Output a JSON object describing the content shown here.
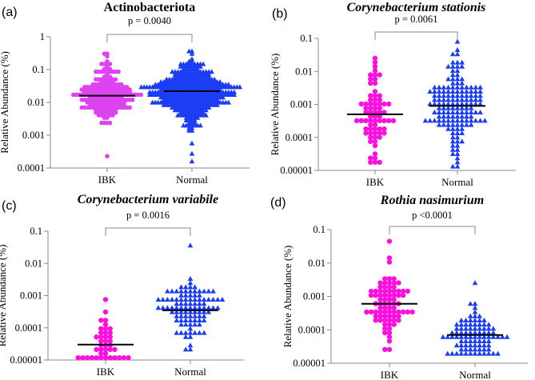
{
  "chart_data": [
    {
      "type": "scatter",
      "panel": "(a)",
      "title": "Actinobacteriota",
      "italic": false,
      "ylabel": "Relative Abundance (%)",
      "yscale": "log",
      "ylim": [
        0.0001,
        1
      ],
      "yticks": [
        "0.0001",
        "0.001",
        "0.01",
        "0.1",
        "1"
      ],
      "categories": [
        "IBK",
        "Normal"
      ],
      "pvalue": "p = 0.0040",
      "groups": [
        {
          "name": "IBK",
          "marker": "circle",
          "color": "#dd44f0",
          "median": 0.016,
          "min": 0.00025,
          "max": 0.3,
          "n": 230,
          "spread": 0.42
        },
        {
          "name": "Normal",
          "marker": "triangle",
          "color": "#1a3cf5",
          "median": 0.022,
          "min": 0.00016,
          "max": 0.35,
          "n": 420,
          "spread": 0.45
        }
      ]
    },
    {
      "type": "scatter",
      "panel": "(b)",
      "title": "Corynebacterium stationis",
      "italic": true,
      "ylabel": "Relative Abundance (%)",
      "yscale": "log",
      "ylim": [
        1e-05,
        0.1
      ],
      "yticks": [
        "0.00001",
        "0.0001",
        "0.001",
        "0.01",
        "0.1"
      ],
      "categories": [
        "IBK",
        "Normal"
      ],
      "pvalue": "p = 0.0061",
      "groups": [
        {
          "name": "IBK",
          "marker": "circle",
          "color": "#ff10dd",
          "median": 0.0005,
          "min": 2e-05,
          "max": 0.025,
          "n": 70,
          "spread": 0.7
        },
        {
          "name": "Normal",
          "marker": "triangle",
          "color": "#1a3cf5",
          "median": 0.0009,
          "min": 1.5e-05,
          "max": 0.07,
          "n": 150,
          "spread": 0.75
        }
      ]
    },
    {
      "type": "scatter",
      "panel": "(c)",
      "title": "Corynebacterium variabile",
      "italic": true,
      "ylabel": "Relative Abundance (%)",
      "yscale": "log",
      "ylim": [
        1e-05,
        0.1
      ],
      "yticks": [
        "0.00001",
        "0.0001",
        "0.001",
        "0.01",
        "0.1"
      ],
      "categories": [
        "IBK",
        "Normal"
      ],
      "pvalue": "p =  0.0016",
      "groups": [
        {
          "name": "IBK",
          "marker": "circle",
          "color": "#ff10dd",
          "median": 3e-05,
          "min": 1.2e-05,
          "max": 0.0008,
          "n": 40,
          "spread": 0.5
        },
        {
          "name": "Normal",
          "marker": "triangle",
          "color": "#1a3cf5",
          "median": 0.00035,
          "min": 2e-05,
          "max": 0.035,
          "n": 100,
          "spread": 0.5
        }
      ]
    },
    {
      "type": "scatter",
      "panel": "(d)",
      "title": "Rothia nasimurium",
      "italic": true,
      "ylabel": "Relative Abundance (%)",
      "yscale": "log",
      "ylim": [
        1e-05,
        0.1
      ],
      "yticks": [
        "0.00001",
        "0.0001",
        "0.001",
        "0.01",
        "0.1"
      ],
      "categories": [
        "IBK",
        "Normal"
      ],
      "pvalue": "p  <0.0001",
      "groups": [
        {
          "name": "IBK",
          "marker": "circle",
          "color": "#ff10dd",
          "median": 0.0006,
          "min": 2.3e-05,
          "max": 0.04,
          "n": 80,
          "spread": 0.6
        },
        {
          "name": "Normal",
          "marker": "triangle",
          "color": "#1a3cf5",
          "median": 7e-05,
          "min": 1.7e-05,
          "max": 0.0025,
          "n": 90,
          "spread": 0.4
        }
      ]
    }
  ]
}
